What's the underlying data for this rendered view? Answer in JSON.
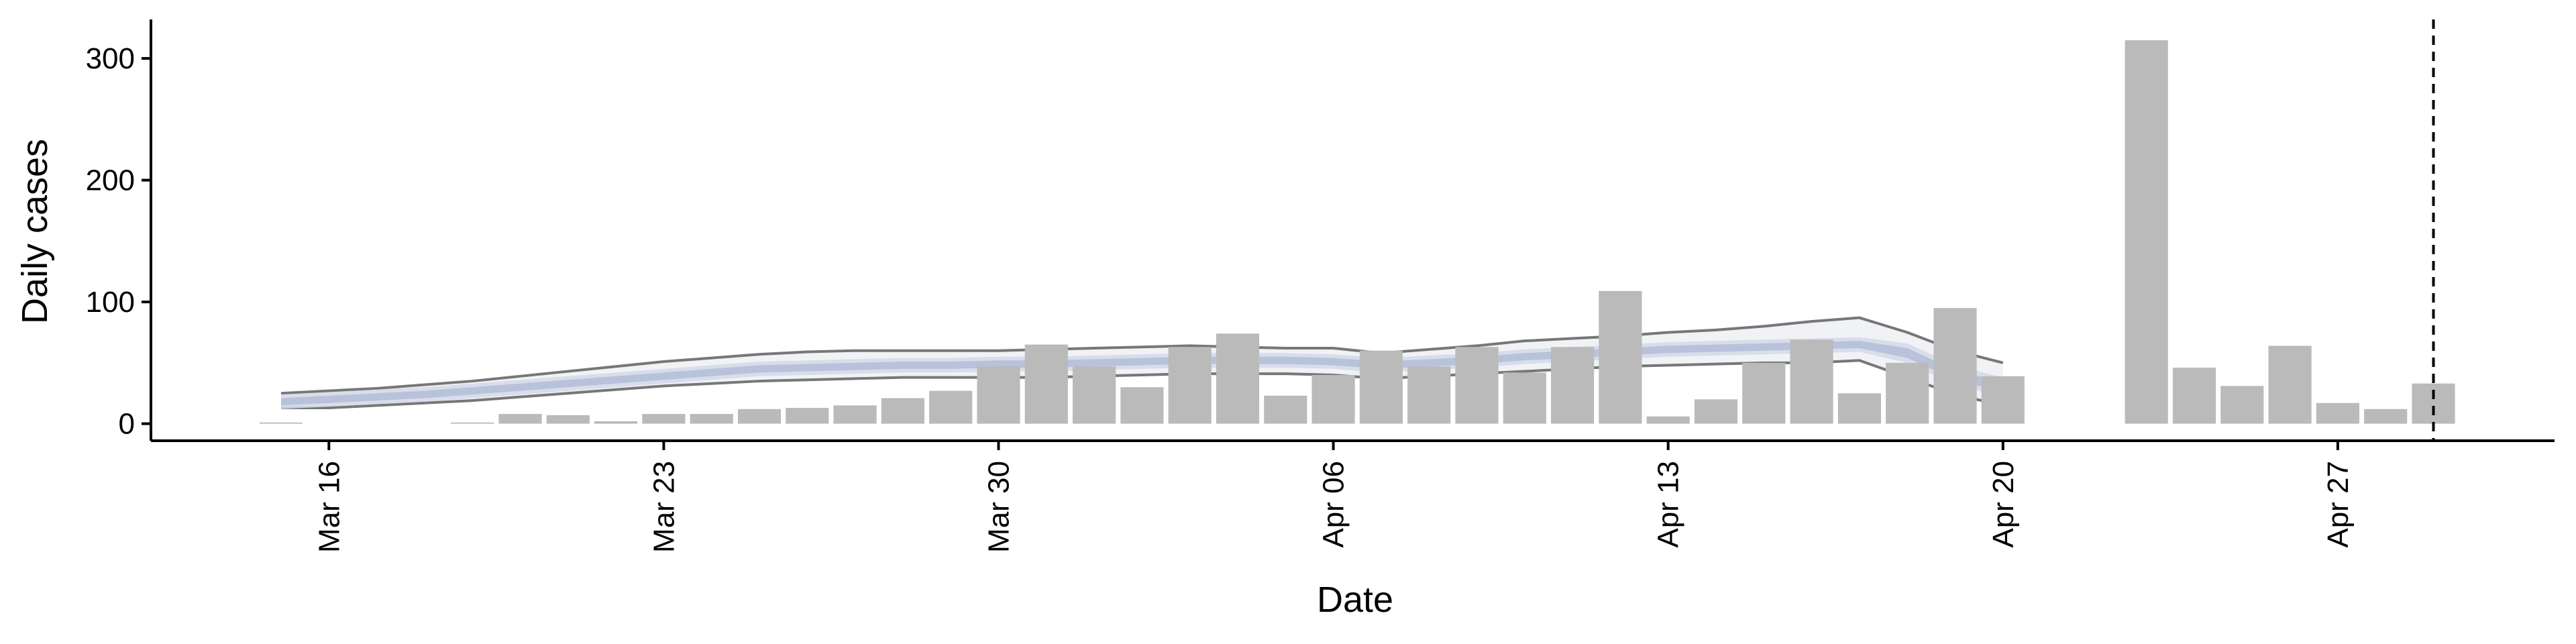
{
  "chart_data": {
    "type": "bar",
    "x_label": "Date",
    "y_label": "Daily cases",
    "categories": [
      null,
      "Mar 16",
      null,
      null,
      null,
      null,
      null,
      null,
      "Mar 23",
      null,
      null,
      null,
      null,
      null,
      null,
      "Mar 30",
      null,
      null,
      null,
      null,
      null,
      null,
      "Apr 06",
      null,
      null,
      null,
      null,
      null,
      null,
      "Apr 13",
      null,
      null,
      null,
      null,
      null,
      null,
      "Apr 20",
      null,
      null,
      null,
      null,
      null,
      null,
      "Apr 27",
      null,
      null
    ],
    "values": [
      1,
      null,
      null,
      null,
      1,
      8,
      7,
      2,
      8,
      8,
      12,
      13,
      15,
      21,
      27,
      47,
      65,
      47,
      30,
      63,
      74,
      23,
      40,
      60,
      47,
      63,
      42,
      63,
      109,
      6,
      20,
      50,
      69,
      25,
      50,
      95,
      39,
      null,
      null,
      315,
      46,
      31,
      64,
      17,
      12,
      33
    ],
    "color": "#bababa",
    "ylim": [
      -14,
      332
    ],
    "yticks": [
      0,
      100,
      200,
      300
    ],
    "bands": [
      {
        "color": "#eef0f5",
        "lower": [
          13,
          13,
          15,
          17,
          19,
          22,
          25,
          28,
          31,
          33,
          35,
          36,
          37,
          38,
          38,
          38,
          38,
          39,
          40,
          41,
          41,
          41,
          40,
          37,
          39,
          41,
          43,
          45,
          47,
          48,
          49,
          50,
          50,
          52,
          38,
          24,
          15
        ],
        "upper": [
          25,
          27,
          29,
          32,
          35,
          39,
          43,
          47,
          51,
          54,
          57,
          59,
          60,
          60,
          60,
          60,
          61,
          62,
          63,
          64,
          63,
          62,
          62,
          58,
          61,
          64,
          68,
          70,
          72,
          75,
          77,
          80,
          84,
          87,
          75,
          60,
          50
        ],
        "line_color": "#777777"
      },
      {
        "color": "#d4d9e8",
        "lower": [
          12,
          14,
          16,
          18,
          21,
          24,
          27,
          30,
          33,
          36,
          39,
          40,
          41,
          42,
          42,
          43,
          43,
          44,
          45,
          46,
          46,
          46,
          45,
          42,
          44,
          46,
          49,
          51,
          53,
          55,
          56,
          57,
          58,
          59,
          50,
          32,
          22
        ],
        "upper": [
          24,
          26,
          28,
          30,
          33,
          36,
          39,
          42,
          45,
          48,
          51,
          52,
          53,
          54,
          54,
          55,
          55,
          56,
          57,
          58,
          58,
          58,
          57,
          54,
          56,
          58,
          61,
          63,
          65,
          67,
          68,
          69,
          70,
          71,
          66,
          48,
          38
        ]
      },
      {
        "color": "#b4bdd8",
        "lower": [
          15,
          17,
          19,
          21,
          24,
          27,
          30,
          33,
          36,
          39,
          42,
          43,
          44,
          45,
          45,
          46,
          46,
          47,
          48,
          49,
          49,
          49,
          48,
          45,
          47,
          49,
          52,
          54,
          56,
          58,
          59,
          60,
          61,
          62,
          54,
          36,
          26
        ],
        "upper": [
          21,
          23,
          25,
          27,
          30,
          33,
          36,
          39,
          42,
          45,
          48,
          49,
          50,
          51,
          51,
          52,
          52,
          53,
          54,
          55,
          55,
          55,
          54,
          51,
          53,
          55,
          58,
          60,
          62,
          64,
          65,
          66,
          67,
          68,
          62,
          44,
          34
        ]
      }
    ]
  }
}
